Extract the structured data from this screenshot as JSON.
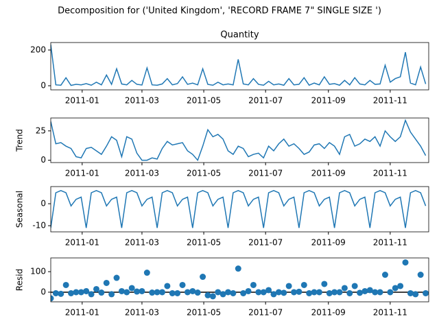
{
  "chart_data": {
    "type": "decomposition",
    "title": "Decomposition for ('United Kingdom', 'RECORD FRAME 7\" SINGLE SIZE ')",
    "x": [
      0,
      5,
      10,
      15,
      20,
      25,
      30,
      35,
      40,
      45,
      50,
      55,
      60,
      65,
      70,
      75,
      80,
      85,
      90,
      95,
      100,
      105,
      110,
      115,
      120,
      125,
      130,
      135,
      140,
      145,
      150,
      155,
      160,
      165,
      170,
      175,
      180,
      185,
      190,
      195,
      200,
      205,
      210,
      215,
      220,
      225,
      230,
      235,
      240,
      245,
      250,
      255,
      260,
      265,
      270,
      275,
      280,
      285,
      290,
      295,
      300,
      305,
      310,
      315,
      320,
      325,
      330,
      335,
      340,
      345,
      350,
      355,
      360,
      365,
      370
    ],
    "xlim": [
      0,
      373
    ],
    "xticks": [
      {
        "value": 31,
        "label": "2011-01"
      },
      {
        "value": 90,
        "label": "2011-03"
      },
      {
        "value": 151,
        "label": "2011-05"
      },
      {
        "value": 212,
        "label": "2011-07"
      },
      {
        "value": 274,
        "label": "2011-09"
      },
      {
        "value": 335,
        "label": "2011-11"
      }
    ],
    "color": "#1f77b4",
    "panels": [
      {
        "type": "line",
        "title": "Quantity",
        "ylim": [
          -23,
          242
        ],
        "yticks": [
          0,
          200
        ],
        "values": [
          230,
          5,
          3,
          45,
          2,
          8,
          5,
          12,
          3,
          20,
          5,
          60,
          8,
          95,
          10,
          5,
          30,
          8,
          4,
          100,
          5,
          3,
          10,
          40,
          5,
          12,
          50,
          8,
          15,
          5,
          95,
          8,
          3,
          20,
          5,
          10,
          5,
          148,
          10,
          5,
          40,
          8,
          3,
          25,
          5,
          10,
          3,
          40,
          5,
          8,
          45,
          3,
          15,
          5,
          50,
          8,
          12,
          3,
          30,
          5,
          45,
          10,
          5,
          30,
          8,
          10,
          115,
          20,
          40,
          50,
          188,
          15,
          5,
          105,
          10
        ]
      },
      {
        "type": "line",
        "ylabel": "Trend",
        "ylim": [
          -2,
          36
        ],
        "yticks": [
          0,
          25
        ],
        "values": [
          33,
          14,
          15,
          12,
          10,
          3,
          2,
          10,
          11,
          8,
          5,
          12,
          20,
          17,
          3,
          20,
          18,
          6,
          0,
          0,
          2,
          1,
          10,
          16,
          13,
          14,
          15,
          8,
          5,
          0,
          12,
          26,
          20,
          22,
          18,
          8,
          5,
          12,
          10,
          3,
          5,
          6,
          2,
          12,
          8,
          14,
          18,
          12,
          14,
          10,
          5,
          7,
          13,
          14,
          10,
          15,
          12,
          5,
          20,
          22,
          12,
          14,
          18,
          16,
          20,
          12,
          25,
          20,
          16,
          20,
          34,
          24,
          18,
          12,
          4
        ]
      },
      {
        "type": "line",
        "ylabel": "Seasonal",
        "ylim": [
          -12.8,
          7.8
        ],
        "yticks": [
          -10,
          0
        ],
        "values": [
          -11,
          5,
          6,
          5,
          -1,
          2,
          3,
          -11,
          5,
          6,
          5,
          -1,
          2,
          3,
          -11,
          5,
          6,
          5,
          -1,
          2,
          3,
          -11,
          5,
          6,
          5,
          -1,
          2,
          3,
          -11,
          5,
          6,
          5,
          -1,
          2,
          3,
          -11,
          5,
          6,
          5,
          -1,
          2,
          3,
          -11,
          5,
          6,
          5,
          -1,
          2,
          3,
          -11,
          5,
          6,
          5,
          -1,
          2,
          3,
          -11,
          5,
          6,
          5,
          -1,
          2,
          3,
          -11,
          5,
          6,
          5,
          -1,
          2,
          3,
          -11,
          5,
          6,
          5,
          -1
        ]
      },
      {
        "type": "scatter",
        "ylabel": "Resid",
        "ylim": [
          -47,
          167
        ],
        "yticks": [
          0,
          100
        ],
        "baseline": 0,
        "values": [
          -30,
          -5,
          -8,
          35,
          -5,
          0,
          0,
          5,
          -10,
          15,
          -2,
          45,
          -10,
          70,
          5,
          0,
          20,
          3,
          5,
          95,
          -2,
          0,
          0,
          30,
          -5,
          -5,
          35,
          0,
          5,
          -2,
          75,
          -15,
          -20,
          0,
          -10,
          0,
          -5,
          115,
          -5,
          5,
          35,
          0,
          0,
          10,
          -10,
          0,
          -3,
          30,
          0,
          2,
          35,
          -5,
          0,
          0,
          40,
          -5,
          0,
          0,
          20,
          -5,
          30,
          -3,
          5,
          10,
          0,
          0,
          85,
          0,
          20,
          30,
          145,
          -5,
          -10,
          85,
          -5
        ]
      }
    ]
  }
}
